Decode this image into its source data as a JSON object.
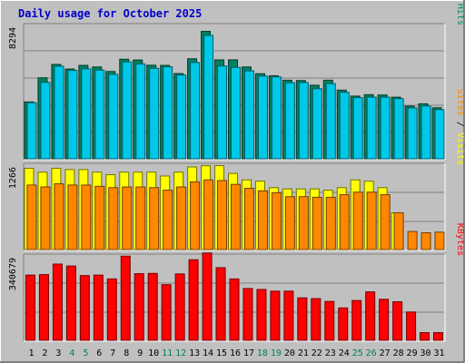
{
  "chart_data": {
    "type": "bar",
    "title": "Daily usage for October 2025",
    "days": [
      "1",
      "2",
      "3",
      "4",
      "5",
      "6",
      "7",
      "8",
      "9",
      "10",
      "11",
      "12",
      "13",
      "14",
      "15",
      "16",
      "17",
      "18",
      "19",
      "20",
      "21",
      "22",
      "23",
      "24",
      "25",
      "26",
      "27",
      "28",
      "29",
      "30",
      "31"
    ],
    "weekend_days": [
      "4",
      "5",
      "11",
      "12",
      "18",
      "19",
      "25",
      "26"
    ],
    "panels": [
      {
        "name": "hits_files_pages",
        "ymax_label": "8294",
        "ymax": 8294,
        "right_label_parts": [
          {
            "text": "Pages",
            "color": "#00c0e0"
          },
          {
            "text": " / ",
            "color": "#000000"
          },
          {
            "text": "Files",
            "color": "#0000cc"
          },
          {
            "text": " / ",
            "color": "#000000"
          },
          {
            "text": "Hits",
            "color": "#009060"
          }
        ],
        "series": [
          {
            "name": "Hits",
            "color": "#008060",
            "values": [
              3610,
              5140,
              5990,
              5700,
              5930,
              5830,
              5540,
              6320,
              6270,
              5940,
              5930,
              5410,
              6350,
              8090,
              6280,
              6280,
              5830,
              5400,
              5270,
              4990,
              4970,
              4670,
              4990,
              4360,
              3980,
              4070,
              4050,
              3910,
              3340,
              3490,
              3240
            ]
          },
          {
            "name": "Files",
            "color": "#00c8e8",
            "values": [
              3560,
              4850,
              5880,
              5610,
              5710,
              5630,
              5360,
              6150,
              6020,
              5740,
              5840,
              5320,
              6110,
              7830,
              5890,
              5800,
              5580,
              5250,
              5200,
              4830,
              4840,
              4450,
              4770,
              4220,
              3880,
              3910,
              3910,
              3820,
              3230,
              3350,
              3120
            ]
          }
        ]
      },
      {
        "name": "visits_sites",
        "ymax_label": "1266",
        "ymax": 1266,
        "right_label_parts": [
          {
            "text": "Sites",
            "color": "#ff8800"
          },
          {
            "text": " / ",
            "color": "#000000"
          },
          {
            "text": "Visits",
            "color": "#ffff00"
          }
        ],
        "series": [
          {
            "name": "Visits",
            "color": "#ffff00",
            "values": [
              1260,
              1200,
              1260,
              1240,
              1240,
              1200,
              1160,
              1200,
              1200,
              1200,
              1140,
              1200,
              1280,
              1300,
              1300,
              1180,
              1080,
              1060,
              960,
              940,
              940,
              940,
              920,
              960,
              1080,
              1060,
              960,
              570,
              0,
              0,
              0
            ]
          },
          {
            "name": "Sites",
            "color": "#ff8800",
            "values": [
              1000,
              970,
              1020,
              1000,
              1000,
              980,
              960,
              970,
              970,
              960,
              920,
              970,
              1050,
              1080,
              1070,
              1010,
              950,
              910,
              880,
              820,
              820,
              810,
              810,
              850,
              890,
              890,
              850,
              570,
              280,
              260,
              270
            ]
          }
        ]
      },
      {
        "name": "kbytes",
        "ymax_label": "340679",
        "ymax": 340679,
        "right_label_parts": [
          {
            "text": "KBytes",
            "color": "#ff0000"
          }
        ],
        "series": [
          {
            "name": "KBytes",
            "color": "#ff0000",
            "values": [
              272000,
              274000,
              318000,
              310000,
              270000,
              272000,
              256000,
              351000,
              278000,
              279000,
              232000,
              277000,
              336000,
              364000,
              303000,
              256000,
              216000,
              212000,
              205000,
              205000,
              177000,
              174000,
              162000,
              135000,
              166000,
              202000,
              171000,
              161000,
              118000,
              32000,
              32000
            ]
          }
        ]
      }
    ]
  }
}
